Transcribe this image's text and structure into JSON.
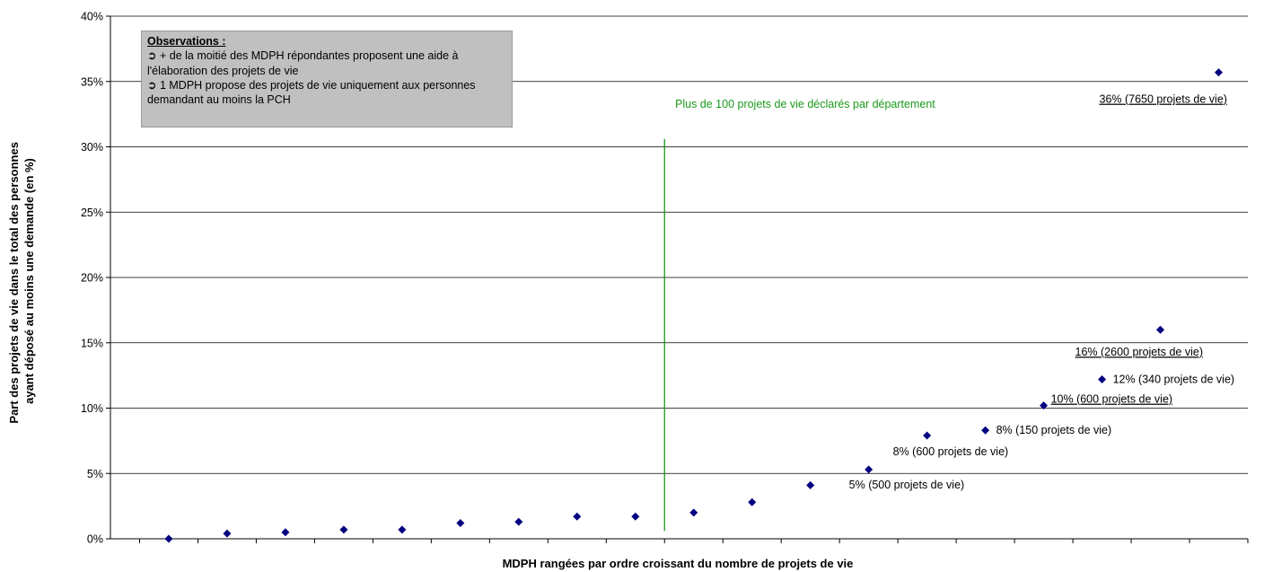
{
  "chart_data": {
    "type": "scatter",
    "title": "",
    "xlabel": "MDPH rangées par ordre croissant du nombre de projets de vie",
    "ylabel_lines": [
      "Part des projets de vie dans le total des personnes",
      "ayant déposé au moins une demande (en %)"
    ],
    "ylim": [
      0,
      40
    ],
    "yticks": [
      0,
      5,
      10,
      15,
      20,
      25,
      30,
      35,
      40
    ],
    "ytick_labels": [
      "0%",
      "5%",
      "10%",
      "15%",
      "20%",
      "25%",
      "30%",
      "35%",
      "40%"
    ],
    "grid": "horizontal",
    "marker_color": "#000080",
    "x": [
      1,
      2,
      3,
      4,
      5,
      6,
      7,
      8,
      9,
      10,
      11,
      12,
      13,
      14,
      15,
      16,
      17,
      18,
      19
    ],
    "values": [
      0,
      0.4,
      0.5,
      0.7,
      0.7,
      1.2,
      1.3,
      1.7,
      1.7,
      2.0,
      2.8,
      4.1,
      5.3,
      7.9,
      8.3,
      10.2,
      12.2,
      16.0,
      35.7
    ],
    "point_labels": [
      {
        "index": 12,
        "text": "5% (500 projets de vie)",
        "underline": false
      },
      {
        "index": 13,
        "text": "8% (600 projets de vie)",
        "underline": false
      },
      {
        "index": 14,
        "text": "8% (150 projets de vie)",
        "underline": false
      },
      {
        "index": 15,
        "text": "10% (600 projets de vie)",
        "underline": true
      },
      {
        "index": 16,
        "text": "12% (340 projets de vie)",
        "underline": false
      },
      {
        "index": 17,
        "text": "16% (2600 projets de vie)",
        "underline": true
      },
      {
        "index": 18,
        "text": "36% (7650 projets de vie)",
        "underline": true
      }
    ],
    "threshold_line": {
      "x": 9.5,
      "color": "#1a9a1a",
      "label": "Plus de 100 projets de vie déclarés par département"
    },
    "observations": {
      "title": "Observations :",
      "items": [
        "+ de la moitié des MDPH répondantes proposent une aide à l'élaboration des projets de vie",
        "1 MDPH propose des projets de vie uniquement aux personnes demandant au moins la PCH"
      ],
      "bullet": "➲"
    }
  }
}
